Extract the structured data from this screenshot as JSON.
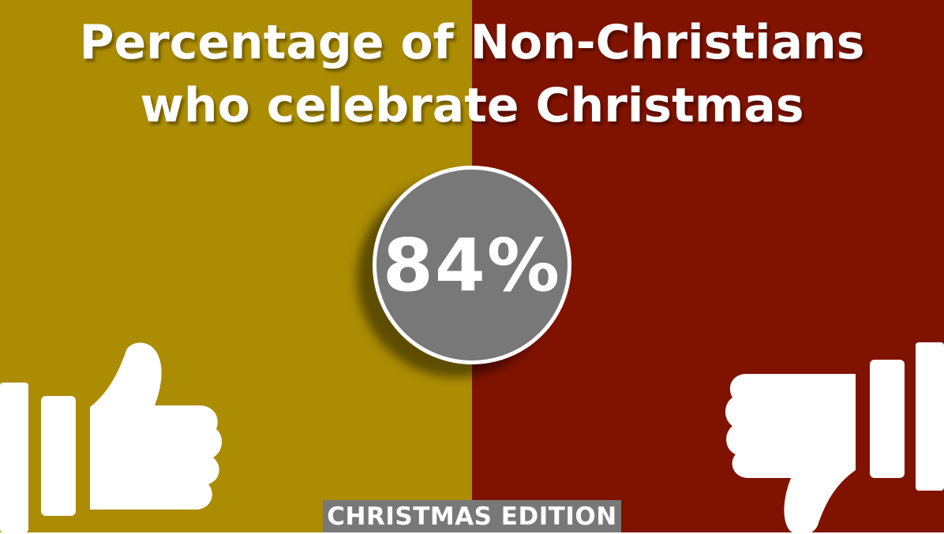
{
  "title": "Percentage of Non-Christians\nwho celebrate Christmas",
  "stat": {
    "value": "84%"
  },
  "footer_label": "CHRISTMAS EDITION",
  "icons": {
    "left": "thumbs-up-icon",
    "right": "thumbs-down-icon"
  },
  "colors": {
    "left_panel": "#ab8c03",
    "right_panel": "#7f1300",
    "badge": "#787878",
    "footer": "#787878",
    "text": "#ffffff"
  }
}
